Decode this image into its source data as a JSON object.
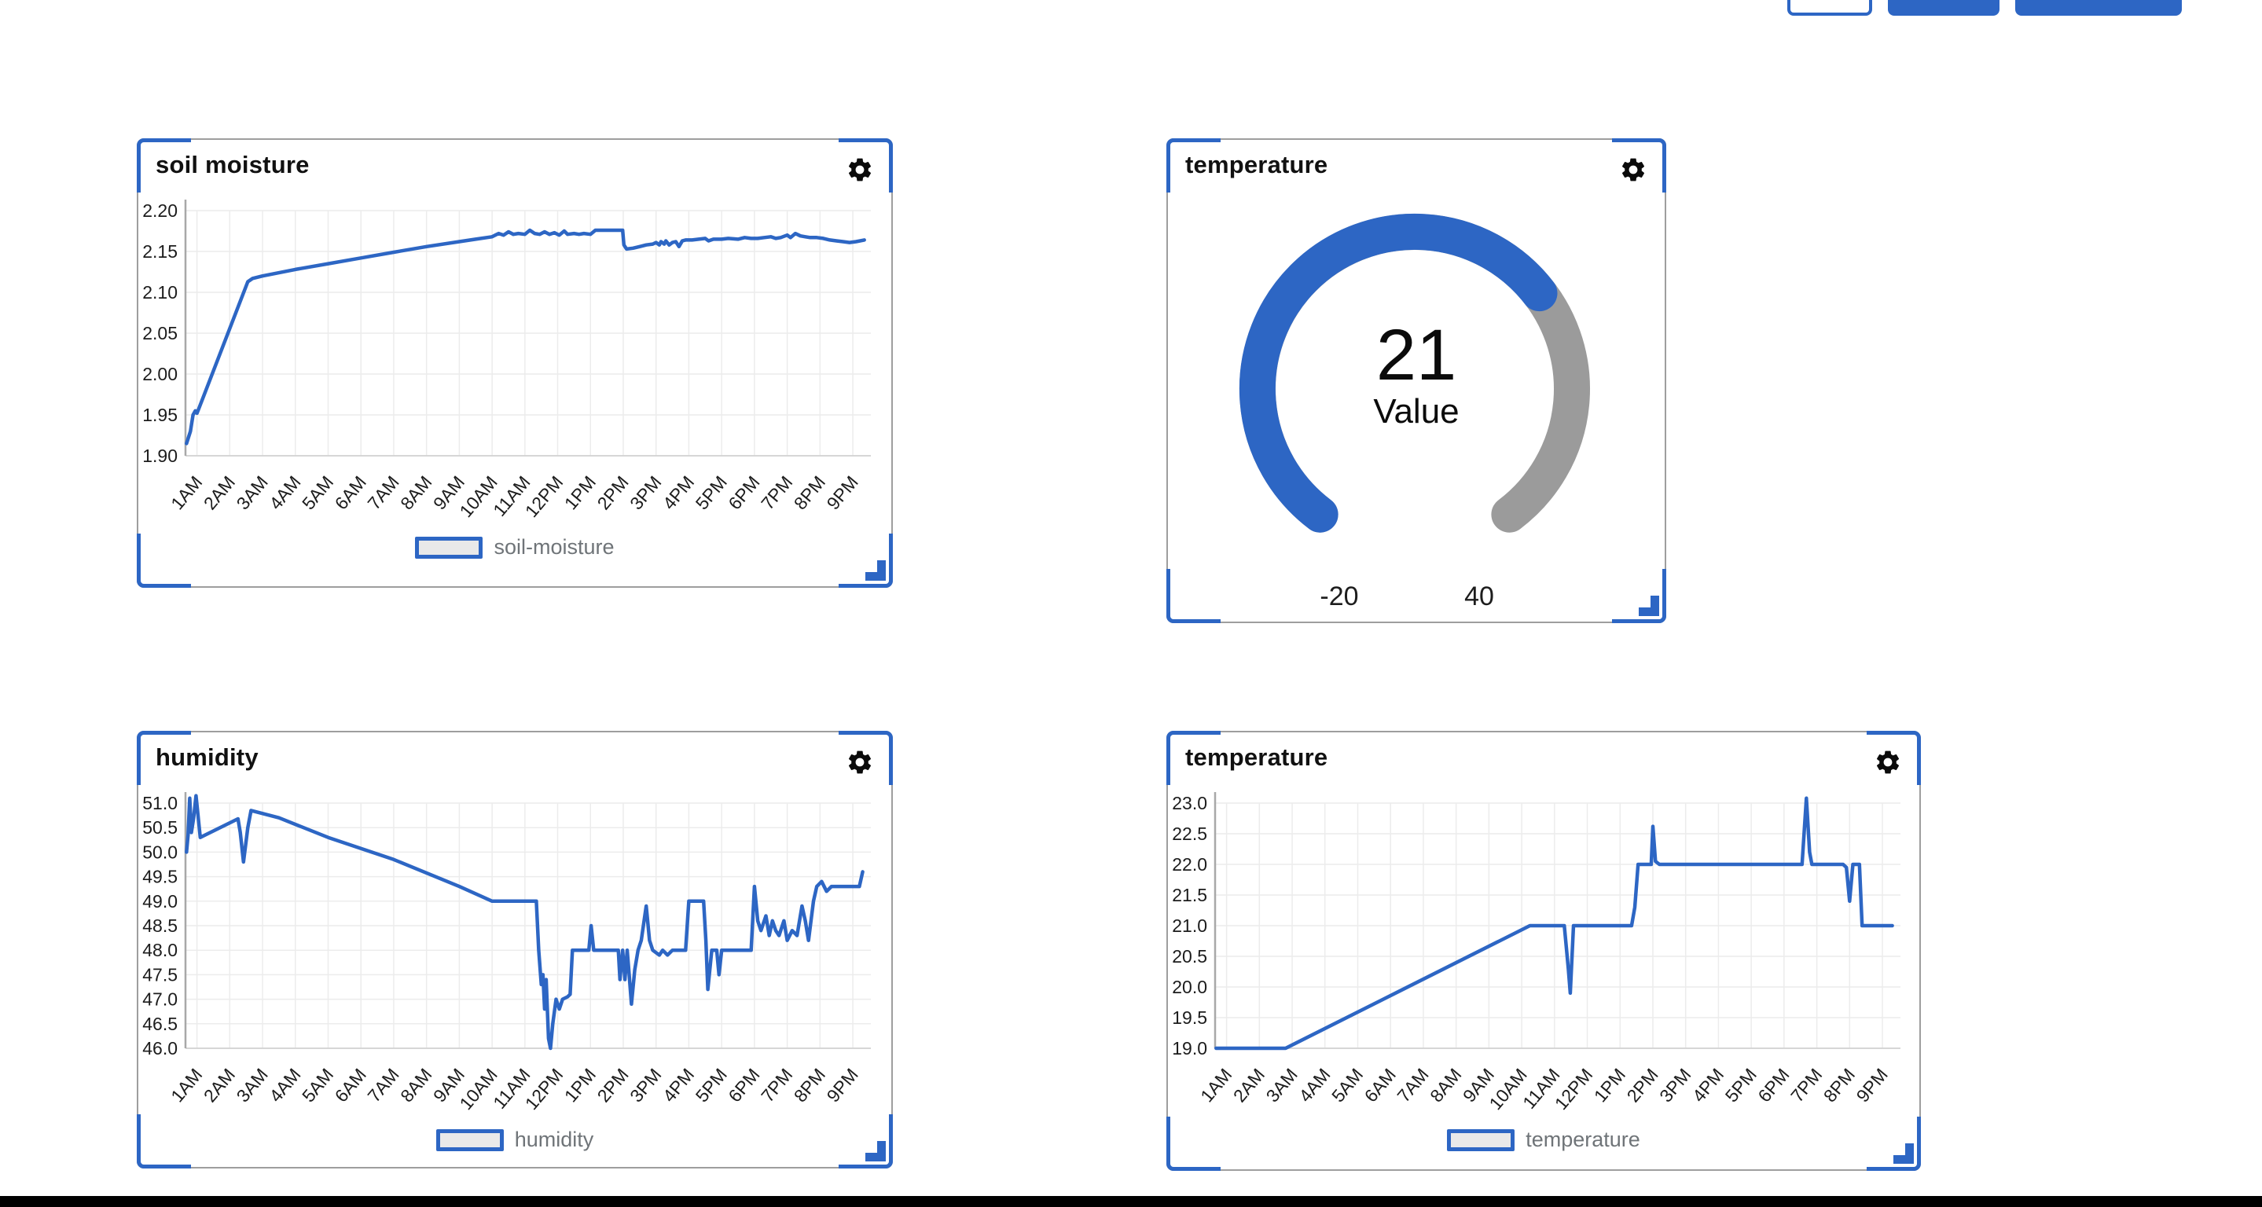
{
  "page": {
    "background": "#ffffff"
  },
  "colors": {
    "accent": "#2d66c4",
    "gauge_rest": "#9b9b9b",
    "grid": "#ececec",
    "axis": "#a8a8a8",
    "legend_text": "#6f7478",
    "panel_border": "#9e9e9e",
    "tick_text": "#1c1c1c"
  },
  "toolbar": {
    "buttons": [
      {
        "id": "outline-button",
        "label": "",
        "style": "outline"
      },
      {
        "id": "primary-button-1",
        "label": "",
        "style": "filled"
      },
      {
        "id": "primary-button-2",
        "label": "",
        "style": "filled"
      }
    ]
  },
  "chart_data": [
    {
      "type": "line",
      "title": "soil moisture",
      "legend": "soil-moisture",
      "x_ticks": [
        "1AM",
        "2AM",
        "3AM",
        "4AM",
        "5AM",
        "6AM",
        "7AM",
        "8AM",
        "9AM",
        "10AM",
        "11AM",
        "12PM",
        "1PM",
        "2PM",
        "3PM",
        "4PM",
        "5PM",
        "6PM",
        "7PM",
        "8PM",
        "9PM"
      ],
      "x_range": [
        0.65,
        21.55
      ],
      "ylim": [
        1.9,
        2.2
      ],
      "y_step": 0.05,
      "y_format": 2,
      "y_ticks": [
        "2.20",
        "2.15",
        "2.10",
        "2.05",
        "2.00",
        "1.95",
        "1.90"
      ],
      "grid": true,
      "legend_position": "bottom",
      "series": [
        {
          "name": "soil-moisture",
          "color": "#2d66c4",
          "points": [
            [
              0.68,
              1.915
            ],
            [
              0.8,
              1.93
            ],
            [
              0.88,
              1.95
            ],
            [
              0.95,
              1.955
            ],
            [
              1.0,
              1.952
            ],
            [
              1.08,
              1.96
            ],
            [
              2.55,
              2.113
            ],
            [
              2.7,
              2.117
            ],
            [
              3.0,
              2.12
            ],
            [
              4.0,
              2.128
            ],
            [
              5.0,
              2.135
            ],
            [
              6.0,
              2.142
            ],
            [
              7.0,
              2.149
            ],
            [
              8.0,
              2.156
            ],
            [
              9.0,
              2.162
            ],
            [
              9.5,
              2.165
            ],
            [
              10.0,
              2.168
            ],
            [
              10.2,
              2.172
            ],
            [
              10.35,
              2.17
            ],
            [
              10.5,
              2.174
            ],
            [
              10.65,
              2.171
            ],
            [
              10.8,
              2.172
            ],
            [
              11.0,
              2.171
            ],
            [
              11.15,
              2.176
            ],
            [
              11.3,
              2.172
            ],
            [
              11.45,
              2.171
            ],
            [
              11.6,
              2.174
            ],
            [
              11.75,
              2.171
            ],
            [
              11.9,
              2.173
            ],
            [
              12.05,
              2.17
            ],
            [
              12.2,
              2.175
            ],
            [
              12.3,
              2.171
            ],
            [
              12.5,
              2.172
            ],
            [
              12.65,
              2.171
            ],
            [
              12.8,
              2.172
            ],
            [
              13.0,
              2.171
            ],
            [
              13.15,
              2.176
            ],
            [
              13.5,
              2.176
            ],
            [
              13.98,
              2.176
            ],
            [
              14.02,
              2.158
            ],
            [
              14.1,
              2.153
            ],
            [
              14.3,
              2.154
            ],
            [
              14.5,
              2.156
            ],
            [
              14.7,
              2.158
            ],
            [
              14.9,
              2.159
            ],
            [
              15.0,
              2.161
            ],
            [
              15.1,
              2.158
            ],
            [
              15.15,
              2.162
            ],
            [
              15.25,
              2.159
            ],
            [
              15.3,
              2.163
            ],
            [
              15.4,
              2.158
            ],
            [
              15.5,
              2.161
            ],
            [
              15.6,
              2.162
            ],
            [
              15.7,
              2.156
            ],
            [
              15.8,
              2.163
            ],
            [
              15.9,
              2.164
            ],
            [
              16.1,
              2.164
            ],
            [
              16.3,
              2.165
            ],
            [
              16.5,
              2.166
            ],
            [
              16.6,
              2.163
            ],
            [
              16.75,
              2.165
            ],
            [
              17.0,
              2.165
            ],
            [
              17.2,
              2.166
            ],
            [
              17.5,
              2.165
            ],
            [
              17.7,
              2.167
            ],
            [
              17.9,
              2.166
            ],
            [
              18.1,
              2.166
            ],
            [
              18.3,
              2.167
            ],
            [
              18.5,
              2.168
            ],
            [
              18.65,
              2.166
            ],
            [
              18.8,
              2.167
            ],
            [
              19.0,
              2.17
            ],
            [
              19.1,
              2.167
            ],
            [
              19.25,
              2.172
            ],
            [
              19.4,
              2.169
            ],
            [
              19.55,
              2.168
            ],
            [
              19.7,
              2.167
            ],
            [
              19.9,
              2.167
            ],
            [
              20.1,
              2.166
            ],
            [
              20.3,
              2.164
            ],
            [
              20.5,
              2.163
            ],
            [
              20.7,
              2.162
            ],
            [
              20.9,
              2.161
            ],
            [
              21.1,
              2.162
            ],
            [
              21.35,
              2.164
            ]
          ]
        }
      ]
    },
    {
      "type": "gauge",
      "title": "temperature",
      "value": 21,
      "min": -20,
      "max": 40,
      "value_label": "21",
      "caption": "Value",
      "min_label": "-20",
      "max_label": "40",
      "color": "#2d66c4",
      "rest_color": "#9b9b9b",
      "arc_span_degrees": 286
    },
    {
      "type": "line",
      "title": "humidity",
      "legend": "humidity",
      "x_ticks": [
        "1AM",
        "2AM",
        "3AM",
        "4AM",
        "5AM",
        "6AM",
        "7AM",
        "8AM",
        "9AM",
        "10AM",
        "11AM",
        "12PM",
        "1PM",
        "2PM",
        "3PM",
        "4PM",
        "5PM",
        "6PM",
        "7PM",
        "8PM",
        "9PM"
      ],
      "x_range": [
        0.65,
        21.55
      ],
      "ylim": [
        46.0,
        51.0
      ],
      "y_step": 0.5,
      "y_format": 1,
      "y_ticks": [
        "51.0",
        "50.5",
        "50.0",
        "49.5",
        "49.0",
        "48.5",
        "48.0",
        "47.5",
        "47.0",
        "46.5",
        "46.0"
      ],
      "grid": true,
      "legend_position": "bottom",
      "series": [
        {
          "name": "humidity",
          "color": "#2d66c4",
          "points": [
            [
              0.68,
              50.0
            ],
            [
              0.73,
              50.35
            ],
            [
              0.78,
              51.1
            ],
            [
              0.83,
              50.4
            ],
            [
              0.9,
              50.7
            ],
            [
              0.97,
              51.15
            ],
            [
              1.1,
              50.3
            ],
            [
              1.25,
              50.35
            ],
            [
              2.25,
              50.68
            ],
            [
              2.32,
              50.4
            ],
            [
              2.42,
              49.8
            ],
            [
              2.55,
              50.5
            ],
            [
              2.65,
              50.85
            ],
            [
              3.5,
              50.7
            ],
            [
              5.0,
              50.3
            ],
            [
              7.0,
              49.85
            ],
            [
              9.0,
              49.3
            ],
            [
              10.0,
              49.0
            ],
            [
              11.35,
              49.0
            ],
            [
              11.42,
              48.0
            ],
            [
              11.5,
              47.3
            ],
            [
              11.55,
              47.5
            ],
            [
              11.6,
              46.8
            ],
            [
              11.65,
              47.4
            ],
            [
              11.72,
              46.2
            ],
            [
              11.78,
              46.0
            ],
            [
              11.85,
              46.5
            ],
            [
              11.95,
              47.0
            ],
            [
              12.05,
              46.8
            ],
            [
              12.15,
              47.0
            ],
            [
              12.3,
              47.05
            ],
            [
              12.38,
              47.1
            ],
            [
              12.45,
              48.0
            ],
            [
              12.95,
              48.0
            ],
            [
              13.02,
              48.5
            ],
            [
              13.1,
              48.0
            ],
            [
              13.85,
              48.0
            ],
            [
              13.9,
              47.4
            ],
            [
              13.98,
              48.0
            ],
            [
              14.05,
              47.4
            ],
            [
              14.12,
              48.0
            ],
            [
              14.18,
              47.5
            ],
            [
              14.25,
              46.9
            ],
            [
              14.35,
              47.6
            ],
            [
              14.45,
              48.0
            ],
            [
              14.55,
              48.2
            ],
            [
              14.7,
              48.9
            ],
            [
              14.8,
              48.2
            ],
            [
              14.9,
              48.0
            ],
            [
              15.1,
              47.9
            ],
            [
              15.2,
              48.0
            ],
            [
              15.35,
              47.9
            ],
            [
              15.5,
              48.0
            ],
            [
              15.9,
              48.0
            ],
            [
              16.0,
              49.0
            ],
            [
              16.45,
              49.0
            ],
            [
              16.52,
              48.2
            ],
            [
              16.58,
              47.2
            ],
            [
              16.7,
              48.0
            ],
            [
              16.85,
              48.0
            ],
            [
              16.92,
              47.5
            ],
            [
              17.0,
              48.0
            ],
            [
              17.9,
              48.0
            ],
            [
              18.0,
              49.3
            ],
            [
              18.1,
              48.6
            ],
            [
              18.2,
              48.4
            ],
            [
              18.35,
              48.7
            ],
            [
              18.45,
              48.3
            ],
            [
              18.55,
              48.6
            ],
            [
              18.65,
              48.4
            ],
            [
              18.75,
              48.3
            ],
            [
              18.9,
              48.6
            ],
            [
              19.0,
              48.2
            ],
            [
              19.15,
              48.4
            ],
            [
              19.3,
              48.3
            ],
            [
              19.45,
              48.9
            ],
            [
              19.55,
              48.6
            ],
            [
              19.65,
              48.2
            ],
            [
              19.8,
              49.0
            ],
            [
              19.9,
              49.3
            ],
            [
              20.05,
              49.4
            ],
            [
              20.2,
              49.2
            ],
            [
              20.35,
              49.3
            ],
            [
              20.9,
              49.3
            ],
            [
              21.2,
              49.3
            ],
            [
              21.3,
              49.6
            ]
          ]
        }
      ]
    },
    {
      "type": "line",
      "title": "temperature",
      "legend": "temperature",
      "x_ticks": [
        "1AM",
        "2AM",
        "3AM",
        "4AM",
        "5AM",
        "6AM",
        "7AM",
        "8AM",
        "9AM",
        "10AM",
        "11AM",
        "12PM",
        "1PM",
        "2PM",
        "3PM",
        "4PM",
        "5PM",
        "6PM",
        "7PM",
        "8PM",
        "9PM"
      ],
      "x_range": [
        0.65,
        21.55
      ],
      "ylim": [
        19.0,
        23.0
      ],
      "y_step": 0.5,
      "y_format": 1,
      "y_ticks": [
        "23.0",
        "22.5",
        "22.0",
        "21.5",
        "21.0",
        "20.5",
        "20.0",
        "19.5",
        "19.0"
      ],
      "grid": true,
      "legend_position": "bottom",
      "series": [
        {
          "name": "temperature",
          "color": "#2d66c4",
          "points": [
            [
              0.68,
              19.0
            ],
            [
              2.8,
              19.0
            ],
            [
              10.25,
              21.0
            ],
            [
              11.3,
              21.0
            ],
            [
              11.42,
              20.3
            ],
            [
              11.48,
              19.9
            ],
            [
              11.58,
              21.0
            ],
            [
              13.35,
              21.0
            ],
            [
              13.45,
              21.3
            ],
            [
              13.55,
              22.0
            ],
            [
              13.95,
              22.0
            ],
            [
              14.0,
              22.62
            ],
            [
              14.08,
              22.05
            ],
            [
              14.2,
              22.0
            ],
            [
              18.55,
              22.0
            ],
            [
              18.68,
              23.08
            ],
            [
              18.78,
              22.2
            ],
            [
              18.85,
              22.0
            ],
            [
              19.8,
              22.0
            ],
            [
              19.9,
              21.95
            ],
            [
              20.0,
              21.4
            ],
            [
              20.1,
              22.0
            ],
            [
              20.3,
              22.0
            ],
            [
              20.38,
              21.0
            ],
            [
              20.6,
              21.0
            ],
            [
              21.3,
              21.0
            ]
          ]
        }
      ]
    }
  ]
}
